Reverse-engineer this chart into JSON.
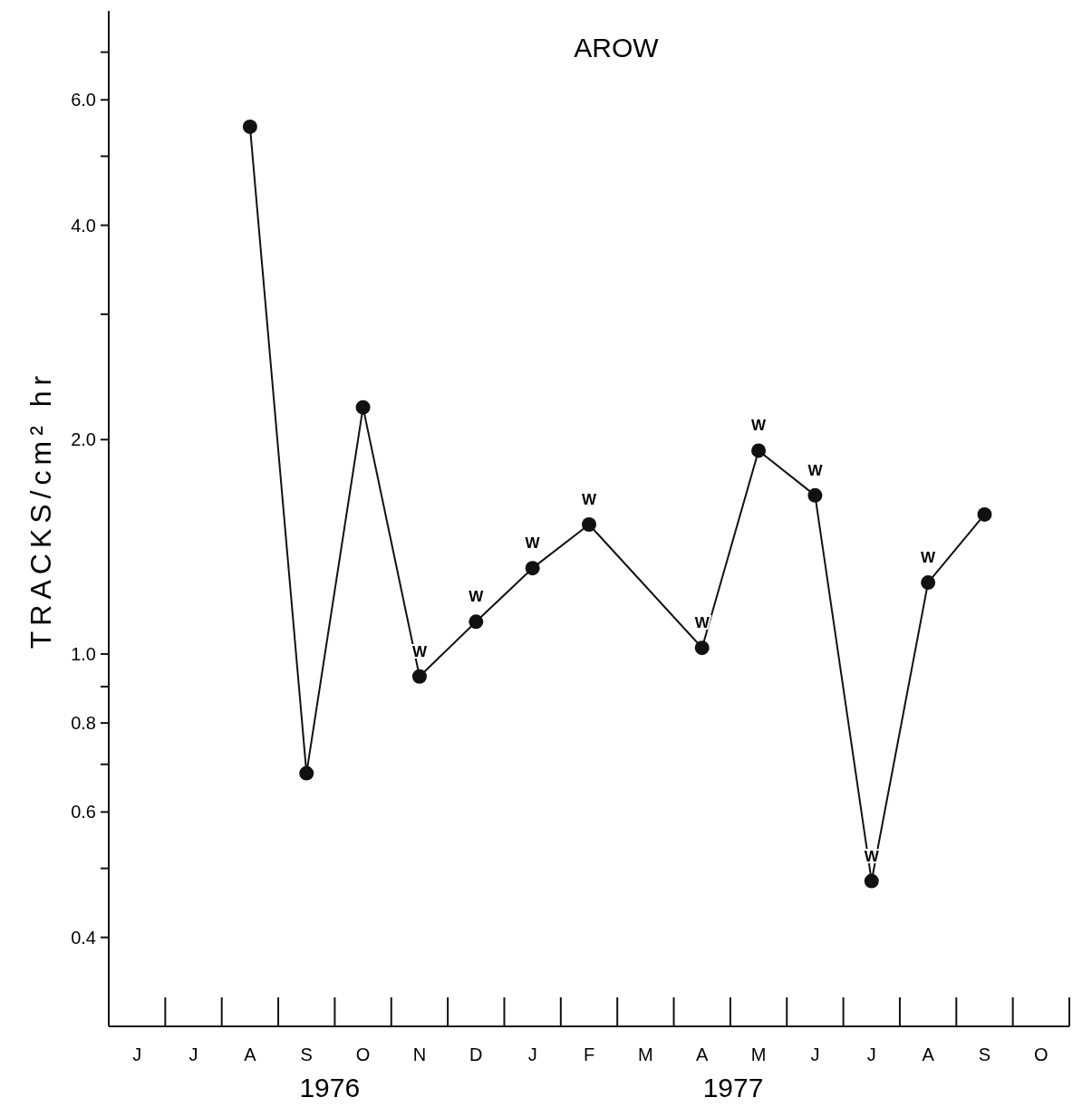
{
  "chart_data": {
    "type": "line",
    "title": "AROW",
    "ylabel": "TRACKS/cm² hr",
    "categories": [
      "J",
      "J",
      "A",
      "S",
      "O",
      "N",
      "D",
      "J",
      "F",
      "M",
      "A",
      "M",
      "J",
      "J",
      "A",
      "S",
      "O"
    ],
    "series": [
      {
        "color": "#111111",
        "values": [
          null,
          null,
          5.5,
          0.68,
          2.22,
          0.93,
          1.11,
          1.32,
          1.52,
          null,
          1.02,
          1.93,
          1.67,
          0.48,
          1.26,
          1.57,
          null
        ],
        "value_labels": [
          null,
          null,
          null,
          null,
          null,
          "W",
          "W",
          "W",
          "W",
          null,
          "W",
          "W",
          "W",
          "W",
          "W",
          null,
          null
        ]
      }
    ],
    "marker": "circle",
    "line_style": "solid",
    "grid": false,
    "log": "y",
    "ylim": [
      0.3,
      8
    ],
    "yticks": [
      {
        "value": 0.4,
        "label": "0.4"
      },
      {
        "value": 0.5,
        "label": null
      },
      0.6,
      {
        "value": 0.7,
        "label": null
      },
      0.8,
      {
        "value": 0.9,
        "label": null
      },
      {
        "value": 1,
        "label": "1.0"
      },
      {
        "value": 2,
        "label": "2.0"
      },
      {
        "value": 3,
        "label": null
      },
      {
        "value": 4,
        "label": "4.0"
      },
      {
        "value": 5,
        "label": null
      },
      {
        "value": 6,
        "label": "6.0"
      },
      {
        "value": 7,
        "label": null
      }
    ],
    "annotations": [
      "1976",
      "1977"
    ]
  }
}
